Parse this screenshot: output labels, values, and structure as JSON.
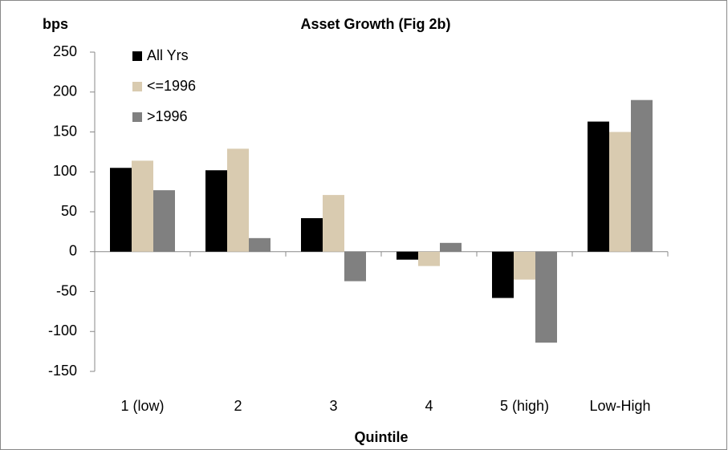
{
  "chart_data": {
    "type": "bar",
    "title": "Asset Growth (Fig 2b)",
    "y_label": "bps",
    "x_label": "Quintile",
    "categories": [
      "1 (low)",
      "2",
      "3",
      "4",
      "5 (high)",
      "Low-High"
    ],
    "series": [
      {
        "name": "All Yrs",
        "color": "#000000",
        "values": [
          105,
          102,
          42,
          -10,
          -58,
          163
        ]
      },
      {
        "name": "<=1996",
        "color": "#d9cbb0",
        "values": [
          114,
          129,
          71,
          -18,
          -35,
          150
        ]
      },
      {
        "name": ">1996",
        "color": "#808080",
        "values": [
          77,
          17,
          -37,
          11,
          -114,
          190
        ]
      }
    ],
    "ylim": [
      -150,
      250
    ],
    "yticks": [
      -150,
      -100,
      -50,
      0,
      50,
      100,
      150,
      200,
      250
    ],
    "grid": false,
    "legend": "top-left"
  }
}
